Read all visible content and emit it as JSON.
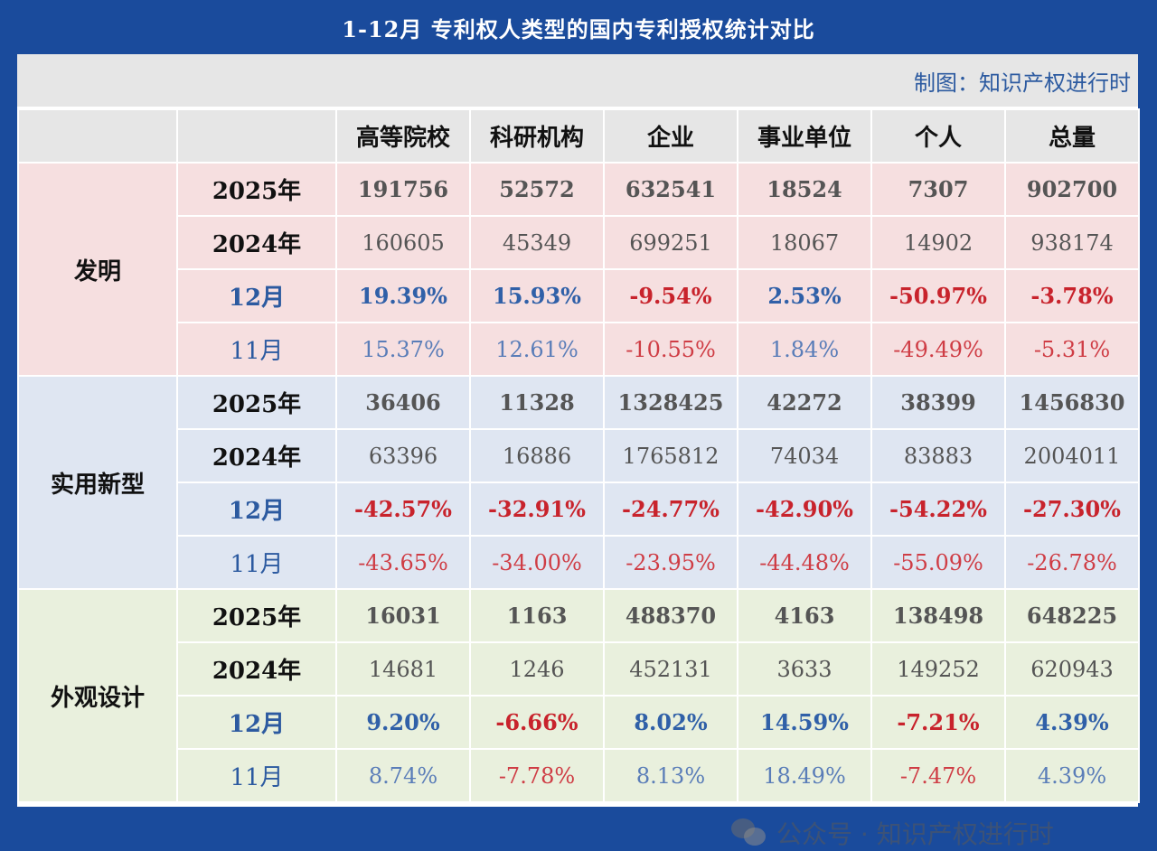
{
  "title": "1-12月 专利权人类型的国内专利授权统计对比",
  "credit": "制图：知识产权进行时",
  "columns": [
    "高等院校",
    "科研机构",
    "企业",
    "事业单位",
    "个人",
    "总量"
  ],
  "sections": [
    {
      "name": "发明",
      "rows": [
        {
          "label": "2025年",
          "values": [
            "191756",
            "52572",
            "632541",
            "18524",
            "7307",
            "902700"
          ]
        },
        {
          "label": "2024年",
          "values": [
            "160605",
            "45349",
            "699251",
            "18067",
            "14902",
            "938174"
          ]
        },
        {
          "label": "12月",
          "values": [
            "19.39%",
            "15.93%",
            "-9.54%",
            "2.53%",
            "-50.97%",
            "-3.78%"
          ]
        },
        {
          "label": "11月",
          "values": [
            "15.37%",
            "12.61%",
            "-10.55%",
            "1.84%",
            "-49.49%",
            "-5.31%"
          ]
        }
      ]
    },
    {
      "name": "实用新型",
      "rows": [
        {
          "label": "2025年",
          "values": [
            "36406",
            "11328",
            "1328425",
            "42272",
            "38399",
            "1456830"
          ]
        },
        {
          "label": "2024年",
          "values": [
            "63396",
            "16886",
            "1765812",
            "74034",
            "83883",
            "2004011"
          ]
        },
        {
          "label": "12月",
          "values": [
            "-42.57%",
            "-32.91%",
            "-24.77%",
            "-42.90%",
            "-54.22%",
            "-27.30%"
          ]
        },
        {
          "label": "11月",
          "values": [
            "-43.65%",
            "-34.00%",
            "-23.95%",
            "-44.48%",
            "-55.09%",
            "-26.78%"
          ]
        }
      ]
    },
    {
      "name": "外观设计",
      "rows": [
        {
          "label": "2025年",
          "values": [
            "16031",
            "1163",
            "488370",
            "4163",
            "138498",
            "648225"
          ]
        },
        {
          "label": "2024年",
          "values": [
            "14681",
            "1246",
            "452131",
            "3633",
            "149252",
            "620943"
          ]
        },
        {
          "label": "12月",
          "values": [
            "9.20%",
            "-6.66%",
            "8.02%",
            "14.59%",
            "-7.21%",
            "4.39%"
          ]
        },
        {
          "label": "11月",
          "values": [
            "8.74%",
            "-7.78%",
            "8.13%",
            "18.49%",
            "-7.47%",
            "4.39%"
          ]
        }
      ]
    }
  ],
  "watermark": "公众号 · 知识产权进行时",
  "colors": {
    "background": "#1a4b9c",
    "header_gray": "#e6e6e6",
    "invention_pink": "#f6dfe0",
    "utility_blue": "#dfe6f2",
    "design_green": "#e9f0dd",
    "accent_blue": "#2c5aa0",
    "negative_red": "#c8232c"
  }
}
